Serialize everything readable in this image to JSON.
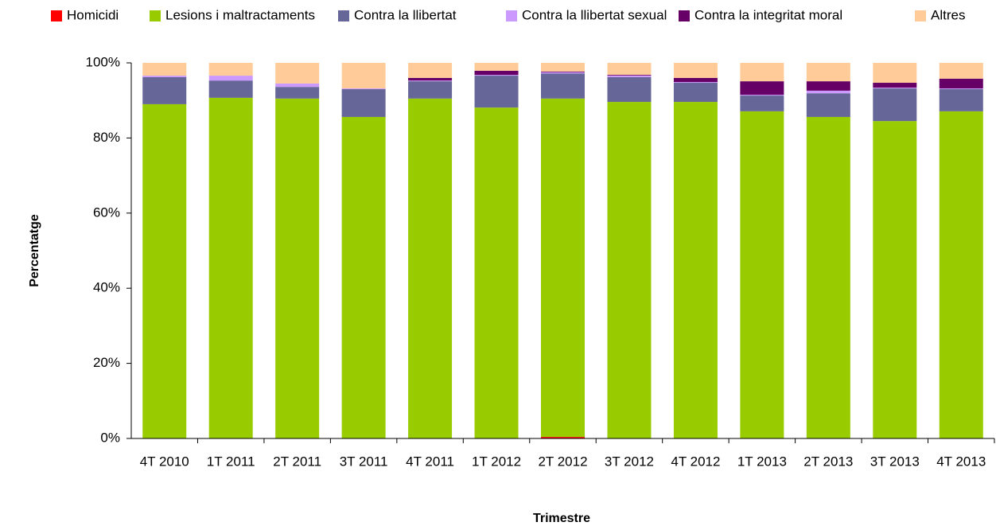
{
  "chart_data": {
    "type": "stacked_bar",
    "categories": [
      "4T 2010",
      "1T 2011",
      "2T 2011",
      "3T 2011",
      "4T 2011",
      "1T 2012",
      "2T 2012",
      "3T 2012",
      "4T 2012",
      "1T 2013",
      "2T 2013",
      "3T 2013",
      "4T 2013"
    ],
    "series": [
      {
        "name": "Homicidi",
        "color": "#ff0000",
        "values": [
          0,
          0,
          0,
          0,
          0,
          0,
          0.4,
          0,
          0,
          0,
          0,
          0,
          0
        ]
      },
      {
        "name": "Lesions i maltractaments",
        "color": "#99cc00",
        "values": [
          89.0,
          90.7,
          90.5,
          85.6,
          90.5,
          88.1,
          90.1,
          89.6,
          89.6,
          87.1,
          85.6,
          84.5,
          87.1
        ]
      },
      {
        "name": "Contra la llibertat",
        "color": "#666699",
        "values": [
          7.2,
          4.6,
          3.1,
          7.4,
          4.6,
          8.5,
          6.7,
          6.6,
          5.1,
          4.2,
          6.3,
          8.7,
          5.9
        ]
      },
      {
        "name": "Contra la llibertat sexual",
        "color": "#cc99ff",
        "values": [
          0.4,
          1.3,
          0.9,
          0.2,
          0.2,
          0.2,
          0.3,
          0.4,
          0.2,
          0.2,
          0.7,
          0.2,
          0.2
        ]
      },
      {
        "name": "Contra la integritat moral",
        "color": "#660066",
        "values": [
          0,
          0,
          0,
          0,
          0.7,
          1.1,
          0.2,
          0.2,
          1.1,
          3.6,
          2.5,
          1.3,
          2.6
        ]
      },
      {
        "name": "Altres",
        "color": "#ffcc99",
        "values": [
          3.4,
          3.4,
          5.5,
          6.8,
          4.0,
          2.1,
          2.3,
          3.2,
          4.0,
          4.9,
          4.9,
          5.3,
          4.2
        ]
      }
    ],
    "ylim": [
      0,
      100
    ],
    "yticks": [
      {
        "value": 0,
        "label": "0%"
      },
      {
        "value": 20,
        "label": "20%"
      },
      {
        "value": 40,
        "label": "40%"
      },
      {
        "value": 60,
        "label": "60%"
      },
      {
        "value": 80,
        "label": "80%"
      },
      {
        "value": 100,
        "label": "100%"
      }
    ],
    "xlabel": "Trimestre",
    "ylabel": "Percentatge",
    "legend": "top",
    "grid": false
  }
}
